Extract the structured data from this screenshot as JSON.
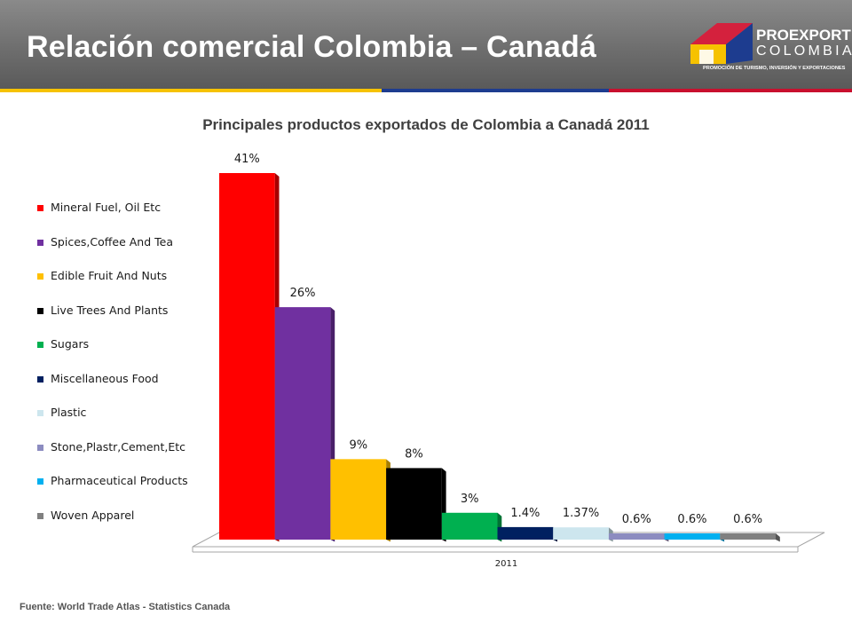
{
  "header": {
    "title": "Relación comercial Colombia – Canadá"
  },
  "logo": {
    "name_line1": "PROEXPORT",
    "name_line2": "COLOMBIA",
    "tagline": "PROMOCIÓN DE TURISMO, INVERSIÓN Y EXPORTACIONES"
  },
  "colors": {
    "stripe": [
      "#f6c200",
      "#1d3c8f",
      "#c8102e"
    ]
  },
  "chart_data": {
    "type": "bar",
    "title": "Principales productos exportados de Colombia a Canadá 2011",
    "categories": [
      "2011"
    ],
    "xlabel": "",
    "ylabel": "",
    "ylim": [
      0,
      41
    ],
    "legend_position": "left",
    "grid": false,
    "series": [
      {
        "name": "Mineral Fuel, Oil Etc",
        "values": [
          41
        ],
        "label": "41%",
        "color": "#ff0000"
      },
      {
        "name": "Spices,Coffee And Tea",
        "values": [
          26
        ],
        "label": "26%",
        "color": "#7030a0"
      },
      {
        "name": "Edible Fruit And Nuts",
        "values": [
          9
        ],
        "label": "9%",
        "color": "#ffc000"
      },
      {
        "name": "Live Trees And Plants",
        "values": [
          8
        ],
        "label": "8%",
        "color": "#000000"
      },
      {
        "name": "Sugars",
        "values": [
          3
        ],
        "label": "3%",
        "color": "#00b050"
      },
      {
        "name": "Miscellaneous Food",
        "values": [
          1.4
        ],
        "label": "1.4%",
        "color": "#002060"
      },
      {
        "name": "Plastic",
        "values": [
          1.37
        ],
        "label": "1.37%",
        "color": "#cde6ee"
      },
      {
        "name": "Stone,Plastr,Cement,Etc",
        "values": [
          0.6
        ],
        "label": "0.6%",
        "color": "#8c8cc0"
      },
      {
        "name": "Pharmaceutical Products",
        "values": [
          0.6
        ],
        "label": "0.6%",
        "color": "#00b0f0"
      },
      {
        "name": "Woven Apparel",
        "values": [
          0.6
        ],
        "label": "0.6%",
        "color": "#808080"
      }
    ]
  },
  "footer": {
    "source": "Fuente: World Trade Atlas - Statistics Canada"
  }
}
